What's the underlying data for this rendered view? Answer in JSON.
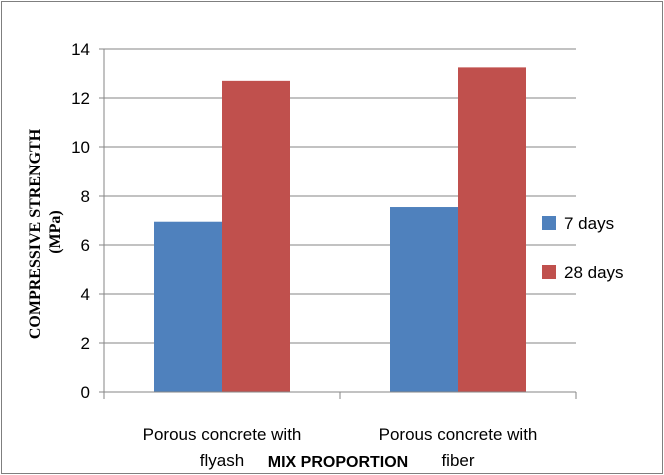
{
  "chart_data": {
    "type": "bar",
    "title": "",
    "xlabel": "MIX PROPORTION",
    "ylabel_lines": [
      "COMPRESSIVE STRENGTH",
      "(MPa)"
    ],
    "categories": [
      [
        "Porous concrete with",
        "flyash"
      ],
      [
        "Porous concrete with",
        "fiber"
      ]
    ],
    "series": [
      {
        "name": "7 days",
        "color": "#4f81bd",
        "values": [
          6.95,
          7.55
        ]
      },
      {
        "name": "28 days",
        "color": "#c0504d",
        "values": [
          12.7,
          13.25
        ]
      }
    ],
    "ylim": [
      0,
      14
    ],
    "yticks": [
      "0",
      "2",
      "4",
      "6",
      "8",
      "10",
      "12",
      "14"
    ],
    "grid": true,
    "legend_position": "right"
  }
}
